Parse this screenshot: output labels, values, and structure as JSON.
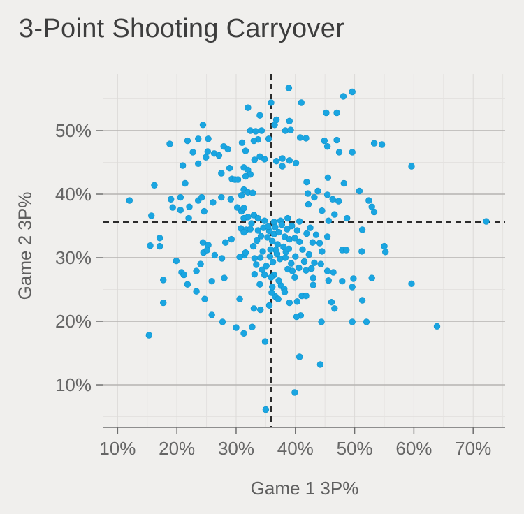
{
  "colors": {
    "background": "#f0efed",
    "title": "#3d3d3d",
    "axis_title": "#5f5f5f",
    "tick_label": "#666666",
    "axis_line": "#6e6e6e",
    "tick_mark": "#6e6e6e",
    "grid_major_h": "#b5b3b1",
    "grid_major_v": "#dcdad8",
    "grid_minor": "#e4e2e0",
    "dashed_line": "#2b2b2b",
    "point_fill": "#1aa5e1",
    "point_edge": "#0f93cb"
  },
  "chart_data": {
    "type": "scatter",
    "title": "3-Point Shooting Carryover",
    "xlabel": "Game 1 3P%",
    "ylabel": "Game 2 3P%",
    "x_ticks": [
      10,
      20,
      30,
      40,
      50,
      60,
      70
    ],
    "y_ticks": [
      10,
      20,
      30,
      40,
      50
    ],
    "x_minor_ticks": [
      15,
      25,
      35,
      45,
      55,
      65,
      75
    ],
    "y_minor_ticks": [
      5,
      15,
      25,
      35,
      45,
      55
    ],
    "tick_suffix": "%",
    "xlim": [
      7.6,
      75.4
    ],
    "ylim": [
      3.3,
      58.9
    ],
    "grid": true,
    "legend": "none",
    "reference_lines": {
      "x_dashed": 35.9,
      "y_dashed": 35.6
    },
    "points": [
      [
        24.4,
        50.9
      ],
      [
        38.9,
        56.7
      ],
      [
        32.0,
        53.6
      ],
      [
        34.0,
        52.4
      ],
      [
        35.9,
        54.4
      ],
      [
        36.8,
        51.7
      ],
      [
        41.0,
        54.4
      ],
      [
        39.0,
        51.5
      ],
      [
        32.4,
        50.0
      ],
      [
        33.3,
        49.9
      ],
      [
        34.3,
        50.0
      ],
      [
        35.5,
        48.7
      ],
      [
        33.7,
        48.6
      ],
      [
        33.0,
        48.4
      ],
      [
        40.8,
        48.9
      ],
      [
        38.3,
        50.0
      ],
      [
        39.2,
        50.1
      ],
      [
        36.5,
        50.9
      ],
      [
        18.8,
        47.9
      ],
      [
        21.8,
        48.4
      ],
      [
        23.6,
        48.7
      ],
      [
        25.3,
        48.7
      ],
      [
        27.9,
        47.5
      ],
      [
        28.6,
        47.1
      ],
      [
        31.0,
        48.1
      ],
      [
        31.6,
        46.8
      ],
      [
        22.7,
        46.6
      ],
      [
        25.2,
        46.7
      ],
      [
        26.3,
        46.4
      ],
      [
        27.1,
        46.1
      ],
      [
        24.9,
        45.8
      ],
      [
        23.6,
        44.8
      ],
      [
        21.0,
        44.5
      ],
      [
        34.0,
        45.9
      ],
      [
        34.8,
        45.5
      ],
      [
        33.1,
        45.4
      ],
      [
        36.8,
        45.2
      ],
      [
        37.8,
        45.6
      ],
      [
        39.0,
        45.3
      ],
      [
        40.1,
        44.9
      ],
      [
        37.8,
        44.4
      ],
      [
        28.9,
        44.1
      ],
      [
        31.3,
        44.2
      ],
      [
        32.0,
        43.8
      ],
      [
        32.4,
        43.1
      ],
      [
        31.6,
        42.8
      ],
      [
        27.5,
        43.3
      ],
      [
        29.3,
        42.4
      ],
      [
        29.8,
        42.3
      ],
      [
        30.3,
        42.3
      ],
      [
        21.4,
        41.7
      ],
      [
        16.2,
        41.4
      ],
      [
        31.3,
        40.7
      ],
      [
        32.0,
        40.3
      ],
      [
        32.8,
        40.2
      ],
      [
        12.0,
        39.0
      ],
      [
        19.0,
        39.2
      ],
      [
        20.6,
        39.5
      ],
      [
        23.6,
        39.0
      ],
      [
        24.2,
        39.5
      ],
      [
        26.1,
        38.7
      ],
      [
        27.5,
        39.5
      ],
      [
        29.1,
        39.2
      ],
      [
        30.9,
        39.8
      ],
      [
        19.3,
        37.9
      ],
      [
        20.6,
        37.5
      ],
      [
        22.1,
        38.0
      ],
      [
        30.2,
        37.9
      ],
      [
        30.9,
        37.3
      ],
      [
        31.3,
        37.8
      ],
      [
        24.6,
        37.3
      ],
      [
        22.0,
        36.2
      ],
      [
        15.7,
        36.6
      ],
      [
        31.3,
        36.2
      ],
      [
        32.0,
        36.4
      ],
      [
        33.0,
        36.7
      ],
      [
        33.7,
        36.2
      ],
      [
        34.8,
        35.8
      ],
      [
        32.6,
        35.4
      ],
      [
        36.4,
        35.6
      ],
      [
        37.5,
        35.8
      ],
      [
        38.7,
        36.2
      ],
      [
        40.7,
        35.7
      ],
      [
        30.8,
        34.6
      ],
      [
        31.7,
        34.4
      ],
      [
        32.4,
        34.5
      ],
      [
        31.3,
        34.0
      ],
      [
        33.7,
        34.3
      ],
      [
        34.6,
        34.7
      ],
      [
        35.6,
        34.2
      ],
      [
        36.4,
        33.7
      ],
      [
        37.2,
        34.0
      ],
      [
        38.2,
        33.3
      ],
      [
        39.0,
        32.9
      ],
      [
        39.9,
        33.1
      ],
      [
        40.7,
        32.5
      ],
      [
        29.2,
        32.9
      ],
      [
        28.2,
        32.4
      ],
      [
        17.1,
        33.1
      ],
      [
        15.5,
        31.9
      ],
      [
        17.1,
        31.8
      ],
      [
        24.4,
        32.4
      ],
      [
        25.3,
        32.0
      ],
      [
        48.1,
        55.4
      ],
      [
        49.6,
        56.1
      ],
      [
        45.2,
        52.8
      ],
      [
        47.0,
        52.8
      ],
      [
        41.8,
        48.8
      ],
      [
        44.9,
        48.4
      ],
      [
        45.4,
        47.5
      ],
      [
        47.0,
        48.5
      ],
      [
        53.3,
        48.0
      ],
      [
        54.6,
        47.8
      ],
      [
        47.4,
        46.6
      ],
      [
        49.6,
        46.6
      ],
      [
        59.6,
        44.4
      ],
      [
        41.9,
        41.9
      ],
      [
        45.5,
        42.6
      ],
      [
        42.1,
        40.1
      ],
      [
        43.8,
        40.5
      ],
      [
        48.2,
        41.7
      ],
      [
        50.8,
        40.5
      ],
      [
        45.4,
        39.9
      ],
      [
        46.3,
        39.2
      ],
      [
        47.3,
        38.9
      ],
      [
        43.2,
        39.5
      ],
      [
        42.2,
        38.4
      ],
      [
        44.5,
        37.4
      ],
      [
        46.6,
        36.8
      ],
      [
        52.4,
        39.0
      ],
      [
        52.9,
        38.0
      ],
      [
        53.3,
        37.2
      ],
      [
        48.7,
        36.2
      ],
      [
        45.6,
        35.8
      ],
      [
        72.2,
        35.7
      ],
      [
        51.3,
        34.4
      ],
      [
        45.4,
        33.3
      ],
      [
        42.9,
        32.4
      ],
      [
        44.1,
        32.3
      ],
      [
        55.0,
        31.8
      ],
      [
        55.2,
        30.9
      ],
      [
        19.9,
        29.5
      ],
      [
        17.7,
        26.5
      ],
      [
        20.8,
        27.7
      ],
      [
        21.2,
        27.3
      ],
      [
        21.8,
        25.8
      ],
      [
        23.3,
        27.9
      ],
      [
        24.0,
        29.0
      ],
      [
        24.5,
        30.8
      ],
      [
        25.1,
        31.2
      ],
      [
        23.3,
        24.7
      ],
      [
        24.7,
        23.5
      ],
      [
        25.9,
        26.3
      ],
      [
        26.4,
        30.4
      ],
      [
        27.6,
        29.9
      ],
      [
        28.0,
        26.8
      ],
      [
        25.9,
        21.0
      ],
      [
        27.7,
        19.9
      ],
      [
        17.7,
        22.9
      ],
      [
        15.3,
        17.8
      ],
      [
        30.0,
        19.0
      ],
      [
        31.4,
        30.4
      ],
      [
        33.1,
        29.9
      ],
      [
        30.6,
        23.5
      ],
      [
        33.0,
        22.0
      ],
      [
        34.1,
        21.8
      ],
      [
        31.3,
        18.1
      ],
      [
        32.7,
        19.1
      ],
      [
        34.9,
        16.8
      ],
      [
        35.0,
        6.1
      ],
      [
        39.9,
        8.8
      ],
      [
        40.7,
        14.4
      ],
      [
        30.6,
        30.1
      ],
      [
        31.6,
        30.8
      ],
      [
        33.1,
        27.4
      ],
      [
        34.4,
        28.1
      ],
      [
        34.0,
        25.8
      ],
      [
        34.8,
        27.3
      ],
      [
        35.7,
        30.2
      ],
      [
        36.7,
        31.2
      ],
      [
        36.4,
        27.3
      ],
      [
        36.6,
        23.9
      ],
      [
        37.1,
        23.5
      ],
      [
        37.6,
        25.6
      ],
      [
        38.3,
        30.0
      ],
      [
        38.7,
        28.2
      ],
      [
        39.3,
        29.1
      ],
      [
        39.0,
        22.9
      ],
      [
        39.9,
        26.9
      ],
      [
        40.3,
        23.1
      ],
      [
        40.9,
        20.9
      ],
      [
        41.1,
        24.0
      ],
      [
        40.2,
        20.7
      ],
      [
        44.5,
        31.0
      ],
      [
        47.9,
        31.2
      ],
      [
        48.6,
        31.2
      ],
      [
        51.2,
        31.0
      ],
      [
        43.2,
        29.2
      ],
      [
        44.3,
        29.0
      ],
      [
        41.8,
        28.0
      ],
      [
        45.4,
        27.9
      ],
      [
        46.4,
        27.7
      ],
      [
        45.6,
        26.4
      ],
      [
        43.0,
        26.8
      ],
      [
        43.0,
        25.7
      ],
      [
        47.9,
        26.3
      ],
      [
        49.8,
        26.7
      ],
      [
        49.6,
        25.4
      ],
      [
        52.9,
        26.8
      ],
      [
        59.6,
        25.9
      ],
      [
        41.8,
        24.0
      ],
      [
        51.3,
        23.3
      ],
      [
        46.1,
        23.0
      ],
      [
        46.6,
        22.0
      ],
      [
        44.4,
        19.9
      ],
      [
        49.6,
        19.9
      ],
      [
        52.0,
        19.9
      ],
      [
        63.9,
        19.2
      ],
      [
        44.2,
        13.2
      ],
      [
        35.3,
        33.2
      ],
      [
        36.1,
        32.6
      ],
      [
        37.0,
        32.1
      ],
      [
        38.0,
        31.7
      ],
      [
        35.8,
        31.3
      ],
      [
        34.5,
        31.0
      ],
      [
        36.9,
        30.6
      ],
      [
        38.4,
        30.9
      ],
      [
        37.4,
        29.8
      ],
      [
        36.2,
        29.3
      ],
      [
        35.1,
        28.7
      ],
      [
        38.9,
        31.4
      ],
      [
        40.0,
        30.2
      ],
      [
        41.2,
        31.3
      ],
      [
        42.3,
        30.5
      ],
      [
        41.5,
        29.4
      ],
      [
        40.6,
        28.4
      ],
      [
        39.5,
        27.9
      ],
      [
        42.7,
        28.3
      ],
      [
        43.5,
        33.6
      ],
      [
        42.5,
        34.7
      ],
      [
        41.9,
        33.8
      ],
      [
        40.3,
        34.3
      ],
      [
        39.4,
        35.0
      ],
      [
        38.6,
        34.5
      ],
      [
        37.7,
        35.2
      ],
      [
        36.6,
        34.8
      ],
      [
        35.4,
        34.9
      ],
      [
        34.2,
        33.4
      ],
      [
        33.5,
        32.7
      ],
      [
        32.9,
        31.8
      ],
      [
        34.1,
        30.0
      ],
      [
        33.4,
        28.9
      ],
      [
        35.9,
        26.9
      ],
      [
        37.2,
        26.4
      ],
      [
        38.1,
        25.1
      ],
      [
        36.0,
        24.5
      ],
      [
        35.6,
        22.5
      ],
      [
        38.2,
        24.6
      ],
      [
        36.1,
        25.4
      ]
    ]
  }
}
